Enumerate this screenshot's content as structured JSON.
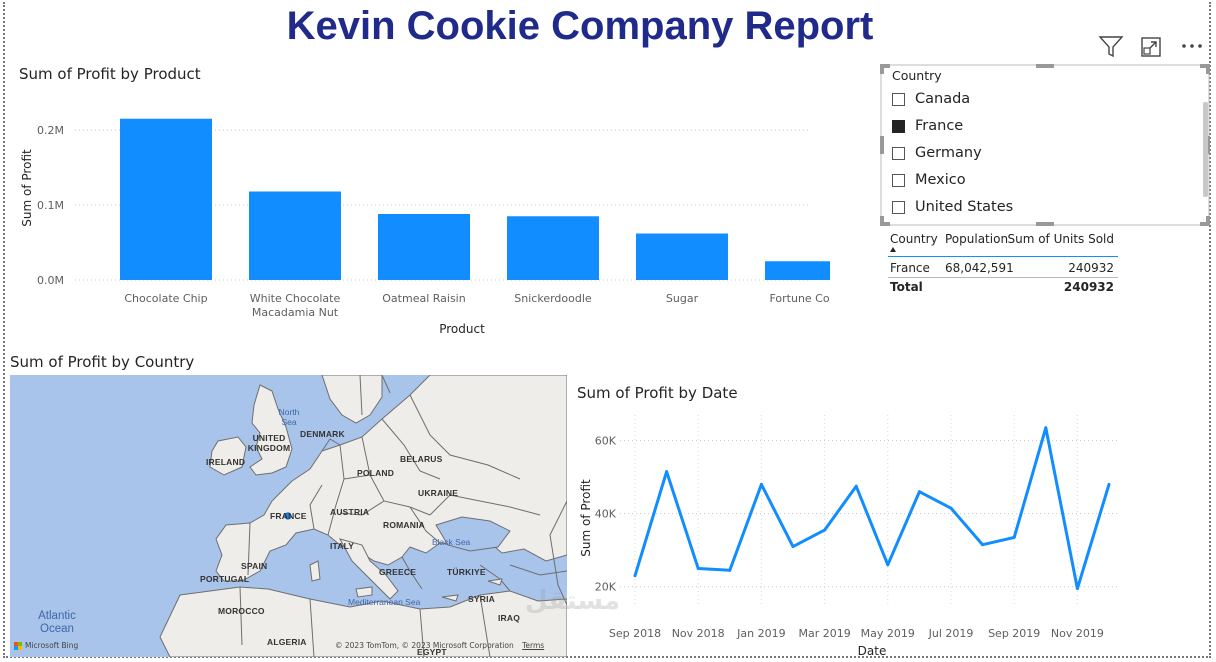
{
  "report_title": "Kevin Cookie Company Report",
  "toolbar": {
    "icons": [
      "filter-icon",
      "focus-mode-icon",
      "more-options-icon"
    ]
  },
  "slicer": {
    "header": "Country",
    "options": [
      {
        "label": "Canada",
        "checked": false
      },
      {
        "label": "France",
        "checked": true
      },
      {
        "label": "Germany",
        "checked": false
      },
      {
        "label": "Mexico",
        "checked": false
      },
      {
        "label": "United States",
        "checked": false
      }
    ]
  },
  "table": {
    "headers": [
      "Country",
      "Population",
      "Sum of Units Sold"
    ],
    "rows": [
      [
        "France",
        "68,042,591",
        "240932"
      ]
    ],
    "total": {
      "label": "Total",
      "value": "240932"
    }
  },
  "map": {
    "title": "Sum of Profit by Country",
    "place_labels": [
      "UNITED KINGDOM",
      "IRELAND",
      "DENMARK",
      "BELARUS",
      "POLAND",
      "UKRAINE",
      "FRANCE",
      "AUSTRIA",
      "ROMANIA",
      "ITALY",
      "SPAIN",
      "PORTUGAL",
      "GREECE",
      "TÜRKIYE",
      "SYRIA",
      "IRAQ",
      "MOROCCO",
      "ALGERIA",
      "EGYPT"
    ],
    "sea_labels": [
      "North Sea",
      "Black Sea",
      "Mediterranean Sea"
    ],
    "ocean_label": "Atlantic Ocean",
    "logo_text": "Microsoft Bing",
    "copyright": "© 2023 TomTom, © 2023 Microsoft Corporation",
    "terms": "Terms",
    "colors": {
      "water": "#a9c4ea",
      "land": "#efedea",
      "border": "#6e6e6e",
      "marker": "#118dff"
    }
  },
  "watermark": "مستقل",
  "chart_data": [
    {
      "type": "bar",
      "title": "Sum of Profit by Product",
      "xlabel": "Product",
      "ylabel": "Sum of Profit",
      "categories": [
        "Chocolate Chip",
        "White Chocolate Macadamia Nut",
        "Oatmeal Raisin",
        "Snickerdoodle",
        "Sugar",
        "Fortune Cookie"
      ],
      "values": [
        0.215,
        0.118,
        0.088,
        0.085,
        0.062,
        0.025
      ],
      "ylim": [
        0,
        0.2
      ],
      "yticks": [
        0,
        0.1,
        0.2
      ],
      "ytick_labels": [
        "0.0M",
        "0.1M",
        "0.2M"
      ],
      "color": "#118dff",
      "grid": true
    },
    {
      "type": "line",
      "title": "Sum of Profit by Date",
      "xlabel": "Date",
      "ylabel": "Sum of Profit",
      "x": [
        "2018-09",
        "2018-10",
        "2018-11",
        "2018-12",
        "2019-01",
        "2019-02",
        "2019-03",
        "2019-04",
        "2019-05",
        "2019-06",
        "2019-07",
        "2019-08",
        "2019-09",
        "2019-10",
        "2019-11",
        "2019-12"
      ],
      "values": [
        23000,
        51500,
        25000,
        24500,
        48000,
        31000,
        35500,
        47500,
        26000,
        46000,
        41500,
        31500,
        33500,
        63500,
        19500,
        48000
      ],
      "xtick_labels": [
        "Sep 2018",
        "Nov 2018",
        "Jan 2019",
        "Mar 2019",
        "May 2019",
        "Jul 2019",
        "Sep 2019",
        "Nov 2019"
      ],
      "yticks": [
        20000,
        40000,
        60000
      ],
      "ytick_labels": [
        "20K",
        "40K",
        "60K"
      ],
      "ylim": [
        15000,
        67000
      ],
      "color": "#118dff",
      "grid": true
    }
  ]
}
